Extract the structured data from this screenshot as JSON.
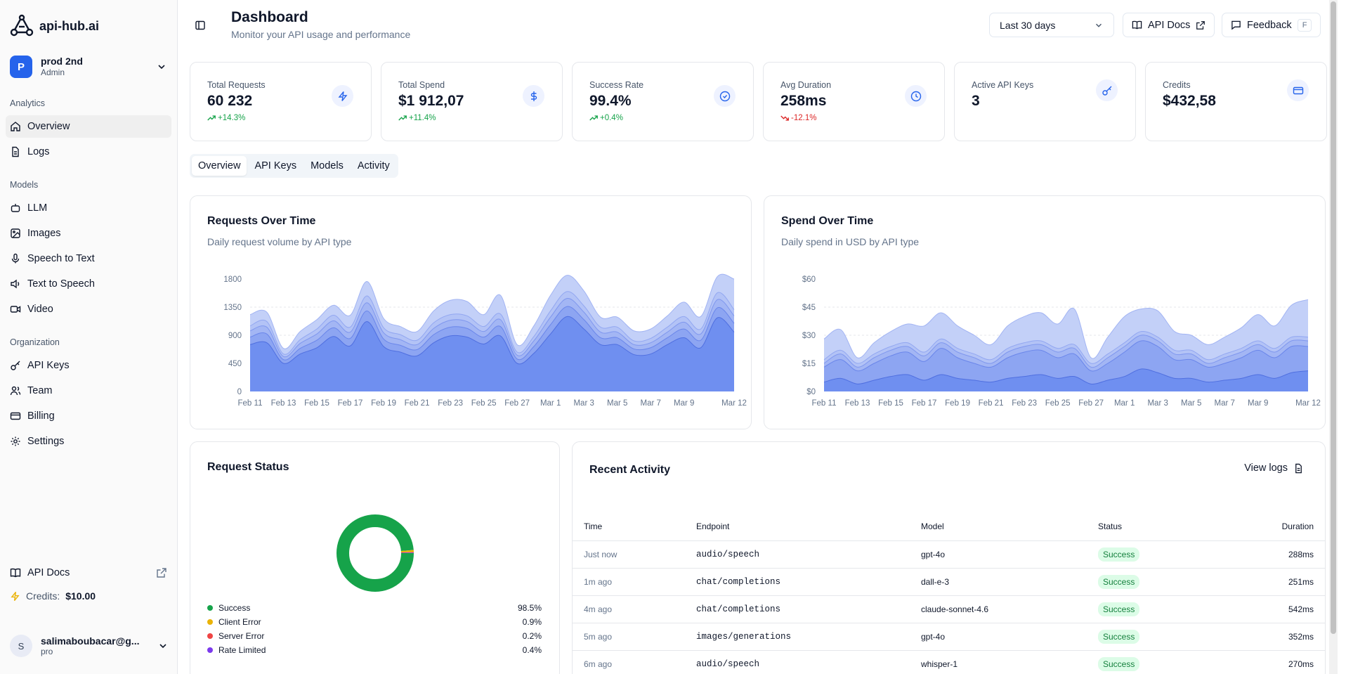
{
  "app": {
    "name": "api-hub.ai"
  },
  "workspace": {
    "initial": "P",
    "name": "prod 2nd",
    "role": "Admin"
  },
  "sidebar": {
    "sections": [
      {
        "label": "Analytics",
        "items": [
          {
            "label": "Overview",
            "icon": "home-icon",
            "active": true
          },
          {
            "label": "Logs",
            "icon": "file-icon"
          }
        ]
      },
      {
        "label": "Models",
        "items": [
          {
            "label": "LLM",
            "icon": "bot-icon"
          },
          {
            "label": "Images",
            "icon": "image-icon"
          },
          {
            "label": "Speech to Text",
            "icon": "mic-icon"
          },
          {
            "label": "Text to Speech",
            "icon": "speaker-icon"
          },
          {
            "label": "Video",
            "icon": "video-icon"
          }
        ]
      },
      {
        "label": "Organization",
        "items": [
          {
            "label": "API Keys",
            "icon": "key-icon"
          },
          {
            "label": "Team",
            "icon": "users-icon"
          },
          {
            "label": "Billing",
            "icon": "credit-card-icon"
          },
          {
            "label": "Settings",
            "icon": "gear-icon"
          }
        ]
      }
    ],
    "api_docs": "API Docs",
    "credits_label": "Credits:",
    "credits_value": "$10.00"
  },
  "user": {
    "initial": "S",
    "email": "salimaboubacar@g...",
    "plan": "pro"
  },
  "header": {
    "title": "Dashboard",
    "subtitle": "Monitor your API usage and performance",
    "range": "Last 30 days",
    "api_docs": "API Docs",
    "feedback": "Feedback",
    "feedback_key": "F"
  },
  "stats": [
    {
      "label": "Total Requests",
      "value": "60 232",
      "delta": "+14.3%",
      "trend": "up",
      "icon": "zap-icon"
    },
    {
      "label": "Total Spend",
      "value": "$1 912,07",
      "delta": "+11.4%",
      "trend": "up",
      "icon": "dollar-icon"
    },
    {
      "label": "Success Rate",
      "value": "99.4%",
      "delta": "+0.4%",
      "trend": "up",
      "icon": "check-circle-icon"
    },
    {
      "label": "Avg Duration",
      "value": "258ms",
      "delta": "-12.1%",
      "trend": "down",
      "icon": "clock-icon"
    },
    {
      "label": "Active API Keys",
      "value": "3",
      "delta": "",
      "trend": "",
      "icon": "key-icon"
    },
    {
      "label": "Credits",
      "value": "$432,58",
      "delta": "",
      "trend": "",
      "icon": "credit-card-icon"
    }
  ],
  "tabs": [
    "Overview",
    "API Keys",
    "Models",
    "Activity"
  ],
  "requests_card": {
    "title": "Requests Over Time",
    "subtitle": "Daily request volume by API type"
  },
  "spend_card": {
    "title": "Spend Over Time",
    "subtitle": "Daily spend in USD by API type"
  },
  "status_card": {
    "title": "Request Status",
    "items": [
      {
        "name": "Success",
        "value": "98.5%",
        "color": "#16a34a"
      },
      {
        "name": "Client Error",
        "value": "0.9%",
        "color": "#eab308"
      },
      {
        "name": "Server Error",
        "value": "0.2%",
        "color": "#ef4444"
      },
      {
        "name": "Rate Limited",
        "value": "0.4%",
        "color": "#7c3aed"
      }
    ]
  },
  "activity_card": {
    "title": "Recent Activity",
    "view_logs": "View logs",
    "columns": [
      "Time",
      "Endpoint",
      "Model",
      "Status",
      "Duration"
    ],
    "rows": [
      {
        "time": "Just now",
        "endpoint": "audio/speech",
        "model": "gpt-4o",
        "status": "Success",
        "duration": "288ms"
      },
      {
        "time": "1m ago",
        "endpoint": "chat/completions",
        "model": "dall-e-3",
        "status": "Success",
        "duration": "251ms"
      },
      {
        "time": "4m ago",
        "endpoint": "chat/completions",
        "model": "claude-sonnet-4.6",
        "status": "Success",
        "duration": "542ms"
      },
      {
        "time": "5m ago",
        "endpoint": "images/generations",
        "model": "gpt-4o",
        "status": "Success",
        "duration": "352ms"
      },
      {
        "time": "6m ago",
        "endpoint": "audio/speech",
        "model": "whisper-1",
        "status": "Success",
        "duration": "270ms"
      }
    ]
  },
  "chart_data": [
    {
      "type": "area",
      "title": "Requests Over Time",
      "subtitle": "Daily request volume by API type",
      "stacked": true,
      "ylim": [
        0,
        1800
      ],
      "yticks": [
        0,
        450,
        900,
        1350,
        1800
      ],
      "xticks": [
        "Feb 11",
        "Feb 13",
        "Feb 15",
        "Feb 17",
        "Feb 19",
        "Feb 21",
        "Feb 23",
        "Feb 25",
        "Feb 27",
        "Mar 1",
        "Mar 3",
        "Mar 5",
        "Mar 7",
        "Mar 9",
        "Mar 12"
      ],
      "x": [
        "Feb 11",
        "Feb 12",
        "Feb 13",
        "Feb 14",
        "Feb 15",
        "Feb 16",
        "Feb 17",
        "Feb 18",
        "Feb 19",
        "Feb 20",
        "Feb 21",
        "Feb 22",
        "Feb 23",
        "Feb 24",
        "Feb 25",
        "Feb 26",
        "Feb 27",
        "Feb 28",
        "Mar 1",
        "Mar 2",
        "Mar 3",
        "Mar 4",
        "Mar 5",
        "Mar 6",
        "Mar 7",
        "Mar 8",
        "Mar 9",
        "Mar 10",
        "Mar 11",
        "Mar 12"
      ],
      "series": [
        {
          "values": [
            750,
            780,
            450,
            600,
            700,
            880,
            730,
            1120,
            720,
            630,
            570,
            780,
            890,
            870,
            760,
            890,
            450,
            610,
            920,
            1200,
            1000,
            750,
            750,
            590,
            600,
            750,
            860,
            700,
            1180,
            950
          ]
        },
        {
          "values": [
            120,
            140,
            60,
            90,
            120,
            140,
            120,
            170,
            120,
            110,
            100,
            130,
            140,
            140,
            110,
            150,
            70,
            110,
            150,
            160,
            150,
            110,
            110,
            90,
            100,
            110,
            140,
            120,
            160,
            140
          ]
        },
        {
          "values": [
            100,
            110,
            50,
            80,
            100,
            110,
            100,
            130,
            100,
            90,
            80,
            100,
            110,
            110,
            90,
            110,
            60,
            90,
            120,
            130,
            120,
            90,
            90,
            70,
            80,
            90,
            110,
            100,
            130,
            120
          ]
        },
        {
          "values": [
            80,
            90,
            40,
            60,
            80,
            90,
            80,
            110,
            80,
            80,
            70,
            90,
            90,
            90,
            80,
            90,
            50,
            70,
            100,
            110,
            100,
            80,
            80,
            60,
            70,
            80,
            90,
            80,
            110,
            100
          ]
        },
        {
          "values": [
            180,
            150,
            90,
            130,
            150,
            160,
            190,
            230,
            150,
            130,
            140,
            190,
            230,
            230,
            190,
            300,
            120,
            170,
            250,
            260,
            240,
            160,
            160,
            160,
            150,
            180,
            230,
            200,
            260,
            490
          ]
        }
      ]
    },
    {
      "type": "area",
      "title": "Spend Over Time",
      "subtitle": "Daily spend in USD by API type",
      "stacked": true,
      "ylim": [
        0,
        60
      ],
      "yticks": [
        "$0",
        "$15",
        "$30",
        "$45",
        "$60"
      ],
      "xticks": [
        "Feb 11",
        "Feb 13",
        "Feb 15",
        "Feb 17",
        "Feb 19",
        "Feb 21",
        "Feb 23",
        "Feb 25",
        "Feb 27",
        "Mar 1",
        "Mar 3",
        "Mar 5",
        "Mar 7",
        "Mar 9",
        "Mar 12"
      ],
      "x": [
        "Feb 11",
        "Feb 12",
        "Feb 13",
        "Feb 14",
        "Feb 15",
        "Feb 16",
        "Feb 17",
        "Feb 18",
        "Feb 19",
        "Feb 20",
        "Feb 21",
        "Feb 22",
        "Feb 23",
        "Feb 24",
        "Feb 25",
        "Feb 26",
        "Feb 27",
        "Feb 28",
        "Mar 1",
        "Mar 2",
        "Mar 3",
        "Mar 4",
        "Mar 5",
        "Mar 6",
        "Mar 7",
        "Mar 8",
        "Mar 9",
        "Mar 10",
        "Mar 11",
        "Mar 12"
      ],
      "series": [
        {
          "values": [
            5,
            7,
            4,
            6,
            8,
            9,
            6,
            9,
            7,
            6,
            5,
            7,
            8,
            9,
            7,
            8,
            4,
            6,
            8,
            12,
            10,
            7,
            7,
            5,
            6,
            7,
            9,
            7,
            10,
            11
          ]
        },
        {
          "values": [
            8,
            10,
            7,
            9,
            11,
            12,
            10,
            14,
            11,
            9,
            8,
            11,
            13,
            13,
            11,
            12,
            7,
            9,
            13,
            15,
            14,
            10,
            10,
            8,
            9,
            11,
            13,
            11,
            14,
            13
          ]
        },
        {
          "values": [
            2,
            3,
            2,
            3,
            3,
            3,
            3,
            3,
            3,
            3,
            2,
            3,
            3,
            3,
            3,
            3,
            2,
            3,
            3,
            3,
            3,
            3,
            3,
            2,
            3,
            3,
            3,
            3,
            3,
            3
          ]
        },
        {
          "values": [
            2,
            2,
            2,
            2,
            2,
            2,
            2,
            2,
            2,
            2,
            2,
            2,
            2,
            2,
            2,
            2,
            2,
            2,
            2,
            2,
            2,
            2,
            2,
            2,
            2,
            2,
            2,
            2,
            2,
            2
          ]
        },
        {
          "values": [
            11,
            11,
            3,
            6,
            8,
            10,
            14,
            14,
            12,
            10,
            8,
            12,
            14,
            15,
            13,
            19,
            3,
            9,
            14,
            12,
            14,
            10,
            8,
            8,
            9,
            11,
            14,
            12,
            17,
            20
          ]
        }
      ]
    },
    {
      "type": "pie",
      "title": "Request Status",
      "donut": true,
      "labels": [
        "Success",
        "Client Error",
        "Server Error",
        "Rate Limited"
      ],
      "values": [
        98.5,
        0.9,
        0.2,
        0.4
      ],
      "colors": [
        "#16a34a",
        "#eab308",
        "#ef4444",
        "#7c3aed"
      ]
    }
  ]
}
